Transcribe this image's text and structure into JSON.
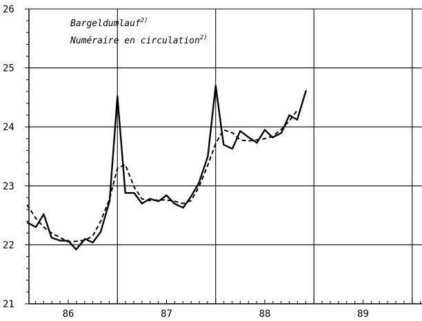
{
  "chart_data": {
    "type": "line",
    "title": "",
    "xlabel": "",
    "ylabel": "",
    "xlim": [
      85.6,
      89.6
    ],
    "ylim": [
      21,
      26
    ],
    "y_ticks": [
      21,
      22,
      23,
      24,
      25,
      26
    ],
    "y_tick_labels": [
      "21",
      "22",
      "23",
      "24",
      "25",
      "26"
    ],
    "x_ticks": [
      86,
      87,
      88,
      89
    ],
    "x_tick_labels": [
      "86",
      "87",
      "88",
      "89"
    ],
    "grid": true,
    "legend": {
      "placement": "top-left",
      "lines": [
        {
          "text": "Bargeldumlauf",
          "sup": "2)"
        },
        {
          "text": "Numéraire en circulation",
          "sup": "2)"
        }
      ]
    },
    "series": [
      {
        "style": "solid",
        "color": "#000000",
        "x": [
          85.58,
          85.67,
          85.75,
          85.83,
          85.92,
          86.0,
          86.08,
          86.17,
          86.25,
          86.33,
          86.42,
          86.5,
          86.58,
          86.67,
          86.75,
          86.83,
          86.92,
          87.0,
          87.08,
          87.17,
          87.25,
          87.33,
          87.42,
          87.5,
          87.58,
          87.67,
          87.75,
          87.83,
          87.92,
          88.0,
          88.08,
          88.17,
          88.25,
          88.33
        ],
        "y": [
          22.38,
          22.3,
          22.52,
          22.12,
          22.07,
          22.07,
          21.92,
          22.1,
          22.04,
          22.22,
          22.74,
          24.52,
          22.88,
          22.88,
          22.7,
          22.78,
          22.74,
          22.84,
          22.7,
          22.63,
          22.82,
          23.05,
          23.5,
          24.7,
          23.7,
          23.63,
          23.93,
          23.83,
          23.73,
          23.95,
          23.82,
          23.9,
          24.2,
          24.12
        ]
      },
      {
        "style": "dashed",
        "color": "#000000",
        "x": [
          85.58,
          85.67,
          85.75,
          85.83,
          85.92,
          86.0,
          86.08,
          86.17,
          86.25,
          86.33,
          86.42,
          86.5,
          86.58,
          86.67,
          86.75,
          86.83,
          86.92,
          87.0,
          87.08,
          87.17,
          87.25,
          87.33,
          87.42,
          87.5,
          87.58,
          87.67,
          87.75,
          87.83,
          87.92,
          88.0,
          88.08,
          88.17,
          88.25,
          88.33
        ],
        "y": [
          22.68,
          22.45,
          22.3,
          22.2,
          22.12,
          22.05,
          22.06,
          22.08,
          22.15,
          22.4,
          22.78,
          23.3,
          23.36,
          22.98,
          22.78,
          22.75,
          22.76,
          22.76,
          22.74,
          22.7,
          22.75,
          22.98,
          23.35,
          23.72,
          23.95,
          23.9,
          23.78,
          23.76,
          23.78,
          23.8,
          23.84,
          23.96,
          24.1,
          24.28
        ]
      }
    ]
  },
  "extra_solid_point": {
    "x": 88.42,
    "y": 24.62
  }
}
